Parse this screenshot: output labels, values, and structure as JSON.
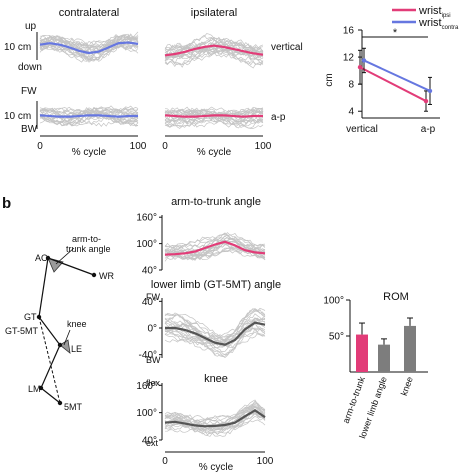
{
  "colors": {
    "contralateral": "#6677e0",
    "ipsilateral": "#e23c78",
    "gray_mean": "#555555",
    "gray_trace": "#c4c4c4",
    "bar_gray": "#7d7d7d"
  },
  "labels": {
    "panel_b": "b",
    "contralateral": "contralateral",
    "ipsilateral": "ipsilateral",
    "vertical": "vertical",
    "ap": "a-p",
    "up": "up",
    "down": "down",
    "fw": "FW",
    "bw": "BW",
    "scale_10cm": "10 cm",
    "x_label": "% cycle",
    "x0": "0",
    "x100": "100",
    "arm_to_trunk_angle": "arm-to-trunk angle",
    "lower_limb_angle": "lower limb (GT-5MT) angle",
    "knee": "knee",
    "flex": "flex",
    "ext": "ext",
    "rom": "ROM"
  },
  "skeleton": {
    "ac": "AC",
    "wr": "WR",
    "gt": "GT",
    "gt_5mt": "GT-5MT",
    "le": "LE",
    "lm": "LM",
    "mt5": "5MT",
    "arm_trunk_angle_line1": "arm-to-",
    "arm_trunk_angle_line2": "trunk angle",
    "knee_angle": "knee"
  },
  "chart_data": [
    {
      "type": "line",
      "title": "",
      "ylabel": "cm",
      "categories": [
        "vertical",
        "a-p"
      ],
      "series": [
        {
          "name": "wrist_ipsi",
          "values": [
            10.5,
            5.5
          ],
          "error": [
            2.5,
            1.5
          ]
        },
        {
          "name": "wrist_contra",
          "values": [
            11.5,
            7.0
          ],
          "error": [
            1.8,
            2.0
          ]
        }
      ],
      "legend": [
        {
          "base": "wrist",
          "sub": "ipsi"
        },
        {
          "base": "wrist",
          "sub": "contra"
        }
      ],
      "ylim": [
        3,
        16
      ],
      "yticks": [
        "4",
        "8",
        "12",
        "16"
      ],
      "significance": "*",
      "legend_position": "top-right"
    },
    {
      "type": "line",
      "title": "arm-to-trunk angle",
      "x": [
        0,
        10,
        20,
        30,
        40,
        50,
        60,
        70,
        80,
        90,
        100
      ],
      "mean": [
        75,
        76,
        78,
        82,
        90,
        98,
        104,
        96,
        85,
        80,
        78
      ],
      "ylim": [
        40,
        165
      ],
      "yticks": [
        "160°",
        "100°",
        "40°"
      ]
    },
    {
      "type": "line",
      "title": "lower limb (GT-5MT) angle",
      "x": [
        0,
        10,
        20,
        30,
        40,
        50,
        60,
        70,
        80,
        90,
        100
      ],
      "mean": [
        0,
        0,
        -3,
        -8,
        -15,
        -22,
        -25,
        -18,
        -2,
        8,
        5
      ],
      "ylim": [
        -45,
        45
      ],
      "yticks": [
        "40°",
        "0°",
        "-40°"
      ]
    },
    {
      "type": "line",
      "title": "knee",
      "x": [
        0,
        10,
        20,
        30,
        40,
        50,
        60,
        70,
        80,
        90,
        100
      ],
      "mean": [
        78,
        80,
        76,
        72,
        70,
        71,
        73,
        78,
        92,
        105,
        90
      ],
      "ylim": [
        40,
        165
      ],
      "yticks": [
        "160°",
        "100°",
        "40°"
      ]
    },
    {
      "type": "bar",
      "title": "ROM",
      "categories": [
        "arm-to-trunk",
        "lower limb angle",
        "knee"
      ],
      "values": [
        52,
        38,
        64
      ],
      "error": [
        16,
        8,
        11
      ],
      "ylim": [
        0,
        100
      ],
      "yticks": [
        "50°",
        "100°"
      ]
    }
  ]
}
